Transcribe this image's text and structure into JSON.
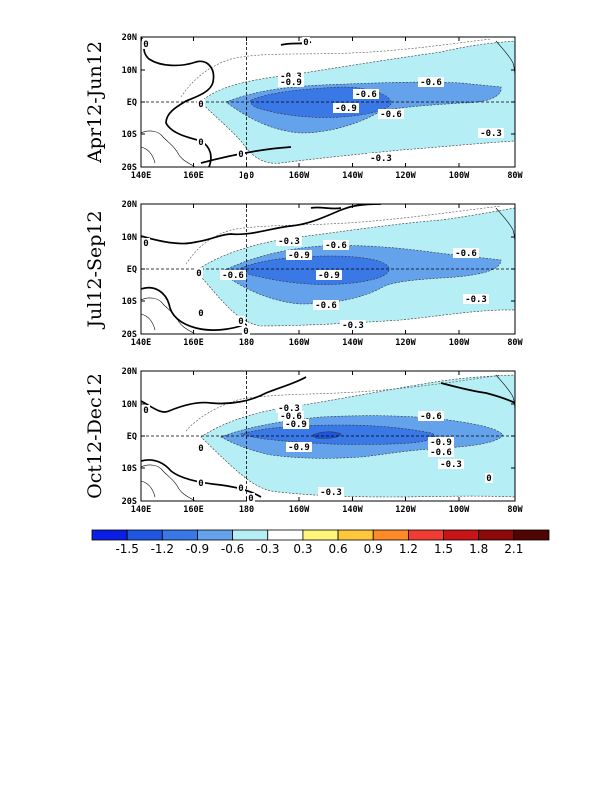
{
  "panels": [
    {
      "title": "Apr12-Jun12",
      "contour_labels": [
        "-0.3",
        "-0.6",
        "-0.9",
        "-0.6",
        "-0.9",
        "-0.6",
        "-0.3",
        "-0.3"
      ],
      "zero_labels": [
        "0",
        "0",
        "0",
        "0",
        "0",
        "0"
      ]
    },
    {
      "title": "Jul12-Sep12",
      "contour_labels": [
        "-0.3",
        "-0.6",
        "-0.9",
        "-0.6",
        "-0.9",
        "-0.6",
        "-0.6",
        "-0.3",
        "-0.3"
      ],
      "zero_labels": [
        "0",
        "0",
        "0",
        "0",
        "0"
      ]
    },
    {
      "title": "Oct12-Dec12",
      "contour_labels": [
        "-0.3",
        "-0.6",
        "-0.9",
        "-0.6",
        "-0.9",
        "-0.9",
        "-0.6",
        "-0.3",
        "-0.3"
      ],
      "zero_labels": [
        "0",
        "0",
        "0",
        "0",
        "0",
        "0"
      ]
    }
  ],
  "lat_ticks": [
    "20N",
    "10N",
    "EQ",
    "10S",
    "20S"
  ],
  "lon_ticks": [
    "140E",
    "160E",
    "180",
    "160W",
    "140W",
    "120W",
    "100W",
    "80W"
  ],
  "colorbar": {
    "colors": [
      "#0a1ee6",
      "#1e55e1",
      "#3a78e6",
      "#64a2ec",
      "#b6eef6",
      "#ffffff",
      "#fff57a",
      "#ffc83c",
      "#ff8a28",
      "#f03c32",
      "#c81416",
      "#8c0a0a",
      "#500505"
    ],
    "labels": [
      "-1.5",
      "-1.2",
      "-0.9",
      "-0.6",
      "-0.3",
      "0.3",
      "0.6",
      "0.9",
      "1.2",
      "1.5",
      "1.8",
      "2.1"
    ]
  }
}
